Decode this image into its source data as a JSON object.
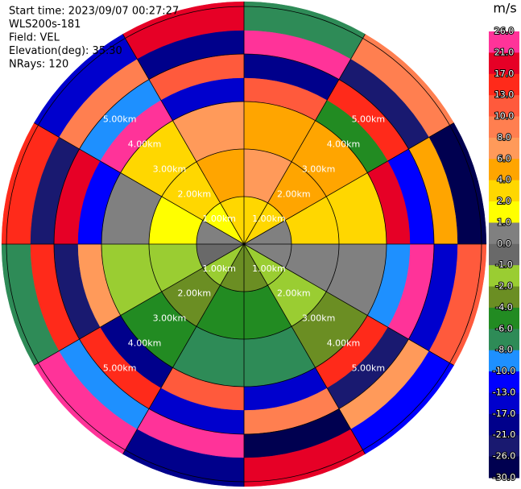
{
  "chart_data": {
    "type": "ppi",
    "header": [
      "Start time: 2023/09/07 00:27:27",
      "WLS200s-181",
      "Field: VEL",
      "Elevation(deg): 35.30",
      "NRays: 120"
    ],
    "colorbar_title": "m/s",
    "levels": [
      {
        "value": 26,
        "label": "26.0"
      },
      {
        "value": 21,
        "label": "21.0"
      },
      {
        "value": 17,
        "label": "17.0"
      },
      {
        "value": 13,
        "label": "13.0"
      },
      {
        "value": 10,
        "label": "10.0"
      },
      {
        "value": 8,
        "label": "8.0"
      },
      {
        "value": 6,
        "label": "6.0"
      },
      {
        "value": 4,
        "label": "4.0"
      },
      {
        "value": 2,
        "label": "2.0"
      },
      {
        "value": 1,
        "label": "1.0"
      },
      {
        "value": 0,
        "label": "0.0"
      },
      {
        "value": -1,
        "label": "-1.0"
      },
      {
        "value": -2,
        "label": "-2.0"
      },
      {
        "value": -4,
        "label": "-4.0"
      },
      {
        "value": -6,
        "label": "-6.0"
      },
      {
        "value": -8,
        "label": "-8.0"
      },
      {
        "value": -10,
        "label": "-10.0"
      },
      {
        "value": -13,
        "label": "-13.0"
      },
      {
        "value": -17,
        "label": "-17.0"
      },
      {
        "value": -21,
        "label": "-21.0"
      },
      {
        "value": -26,
        "label": "-26.0"
      },
      {
        "value": -30,
        "label": "-30.0"
      }
    ],
    "colors": [
      "#ff3399",
      "#e60026",
      "#ff2a1a",
      "#ff5a3c",
      "#ff7f50",
      "#ff9a5a",
      "#ffa500",
      "#ffd700",
      "#ffff00",
      "#808080",
      "#696969",
      "#9acd32",
      "#6b8e23",
      "#228b22",
      "#2e8b57",
      "#1e90ff",
      "#0000ff",
      "#0000cd",
      "#00008b",
      "#191970",
      "#000050"
    ],
    "rings": [
      {
        "value": 1,
        "label": "1.00km"
      },
      {
        "value": 2,
        "label": "2.00km"
      },
      {
        "value": 3,
        "label": "3.00km"
      },
      {
        "value": 4,
        "label": "4.00km"
      },
      {
        "value": 5,
        "label": "5.00km"
      }
    ],
    "azimuth_edges": [
      0,
      30,
      60,
      90,
      120,
      150,
      180,
      210,
      240,
      270,
      300,
      330,
      360
    ],
    "range_edges": [
      0,
      1,
      2,
      3,
      3.5,
      4,
      4.5,
      5.1
    ],
    "values": [
      [
        3,
        7,
        5,
        12,
        -18,
        24,
        -8
      ],
      [
        3,
        5,
        4,
        -6,
        15,
        -22,
        9
      ],
      [
        0.5,
        3,
        3,
        18,
        -12,
        5,
        -27
      ],
      [
        0.5,
        0.5,
        0.5,
        -9,
        22,
        -15,
        11
      ],
      [
        -1.5,
        -1.5,
        -3,
        14,
        -24,
        7,
        -11
      ],
      [
        -3,
        -5,
        -7,
        -16,
        9,
        -28,
        19
      ],
      [
        -3,
        -5,
        -7,
        11,
        -14,
        23,
        -19
      ],
      [
        -1.5,
        -3,
        -5,
        -20,
        16,
        -9,
        27
      ],
      [
        -0.5,
        -1.5,
        -1.5,
        7,
        -23,
        13,
        -7
      ],
      [
        0.5,
        1.5,
        0.5,
        -13,
        19,
        -26,
        15
      ],
      [
        1.5,
        3,
        3,
        25,
        -10,
        8,
        -16
      ],
      [
        3,
        5,
        7,
        -15,
        12,
        -21,
        17
      ]
    ]
  }
}
